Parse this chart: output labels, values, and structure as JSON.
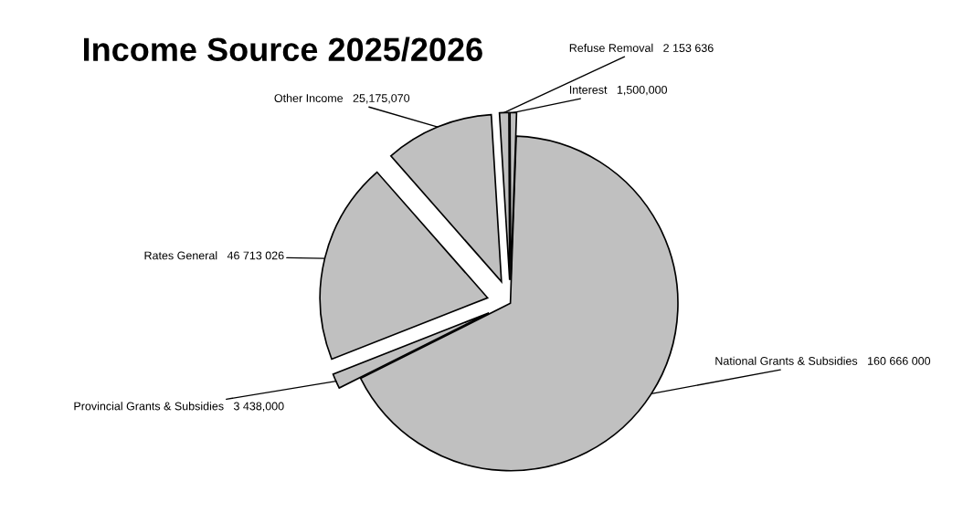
{
  "chart_data": {
    "type": "pie",
    "title": "Income Source 2025/2026",
    "categories": [
      "National Grants & Subsidies",
      "Provincial Grants & Subsidies",
      "Rates General",
      "Other Income",
      "Refuse Removal",
      "Interest"
    ],
    "values": [
      160666000,
      3438000,
      46713026,
      25175070,
      2153636,
      1500000
    ],
    "value_labels": [
      "160 666 000",
      "3 438,000",
      "46 713 026",
      "25,175,070",
      "2 153 636",
      "1,500,000"
    ],
    "colors": [
      "#c0c0c0",
      "#c0c0c0",
      "#c0c0c0",
      "#c0c0c0",
      "#c0c0c0",
      "#c0c0c0"
    ],
    "legend": false
  }
}
